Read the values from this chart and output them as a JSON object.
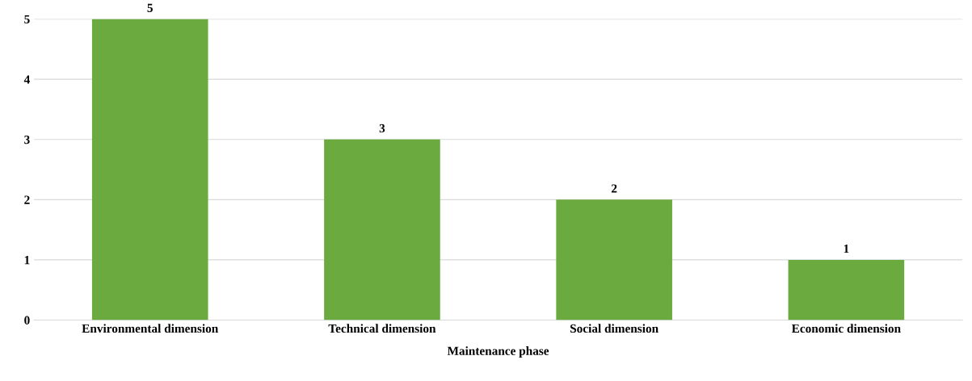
{
  "chart_data": {
    "type": "bar",
    "xlabel": "Maintenance phase",
    "categories": [
      "Environmental dimension",
      "Technical dimension",
      "Social dimension",
      "Economic dimension"
    ],
    "values": [
      5,
      3,
      2,
      1
    ],
    "color": "#6aaa3f",
    "ylim": [
      0,
      5
    ],
    "yticks": [
      0,
      1,
      2,
      3,
      4,
      5
    ],
    "grid": "y",
    "data_labels": true
  }
}
